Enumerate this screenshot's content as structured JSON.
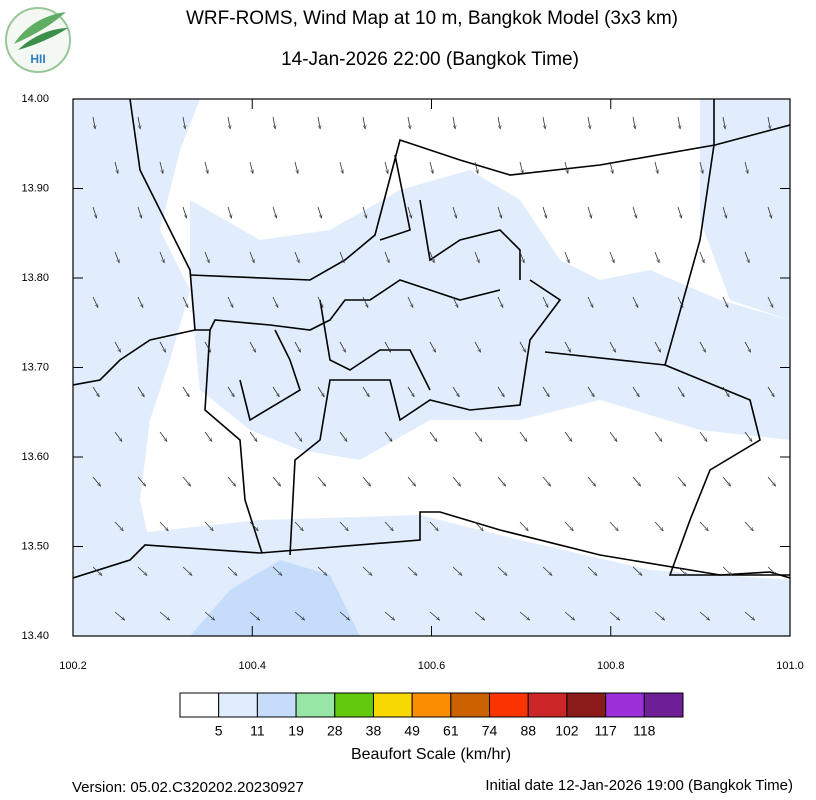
{
  "logo": {
    "text": "HII"
  },
  "chart_data": {
    "type": "map",
    "title": "WRF-ROMS, Wind Map at 10 m, Bangkok Model (3x3 km)",
    "subtitle": "14-Jan-2026 22:00 (Bangkok Time)",
    "xlim": [
      100.2,
      101.0
    ],
    "ylim": [
      13.4,
      14.0
    ],
    "xticks": [
      100.2,
      100.4,
      100.6,
      100.8,
      {
        "value": 101.0,
        "label": "101.0"
      }
    ],
    "yticks": [
      {
        "value": 13.4,
        "label": "13.40"
      },
      {
        "value": 13.5,
        "label": "13.50"
      },
      {
        "value": 13.6,
        "label": "13.60"
      },
      {
        "value": 13.7,
        "label": "13.70"
      },
      {
        "value": 13.8,
        "label": "13.80"
      },
      {
        "value": 13.9,
        "label": "13.90"
      },
      {
        "value": 14.0,
        "label": "14.00"
      }
    ],
    "colorbar": {
      "title": "Beaufort Scale (km/hr)",
      "boundaries": [
        5,
        11,
        19,
        28,
        38,
        49,
        61,
        74,
        88,
        102,
        117,
        118
      ],
      "colors": [
        "#ffffff",
        "#e1edfd",
        "#c6dcfb",
        "#98e6a6",
        "#63c90c",
        "#f7d800",
        "#fb8e00",
        "#cc6100",
        "#fa3400",
        "#cc2629",
        "#8b1a1a",
        "#9b2fd8",
        "#6e1e96"
      ]
    }
  },
  "footer": {
    "version": "Version: 05.02.C320202.20230927",
    "initial": "Initial date 12-Jan-2026 19:00 (Bangkok Time)"
  }
}
